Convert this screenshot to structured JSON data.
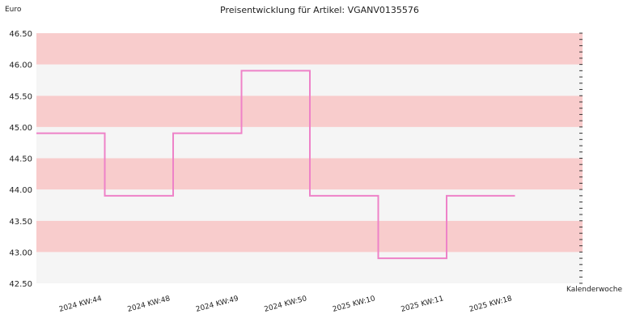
{
  "chart_data": {
    "type": "line",
    "step": true,
    "title": "Preisentwicklung für Artikel: VGANV0135576",
    "ylabel": "Euro",
    "xlabel": "Kalenderwoche",
    "categories": [
      "2024 KW:44",
      "2024 KW:48",
      "2024 KW:49",
      "2024 KW:50",
      "2025 KW:10",
      "2025 KW:11",
      "2025 KW:18"
    ],
    "series": [
      {
        "values": [
          44.9,
          43.9,
          44.9,
          45.9,
          43.9,
          42.9,
          43.9
        ]
      }
    ],
    "ylim": [
      42.5,
      46.5
    ],
    "yticks": [
      "42.50",
      "43.00",
      "43.50",
      "44.00",
      "44.50",
      "45.00",
      "45.50",
      "46.00",
      "46.50"
    ],
    "grid": "alternating horizontal bands",
    "colors": {
      "line": "#ee82c8",
      "band_pink": "#f8cccc",
      "band_light": "#f5f5f5"
    }
  }
}
